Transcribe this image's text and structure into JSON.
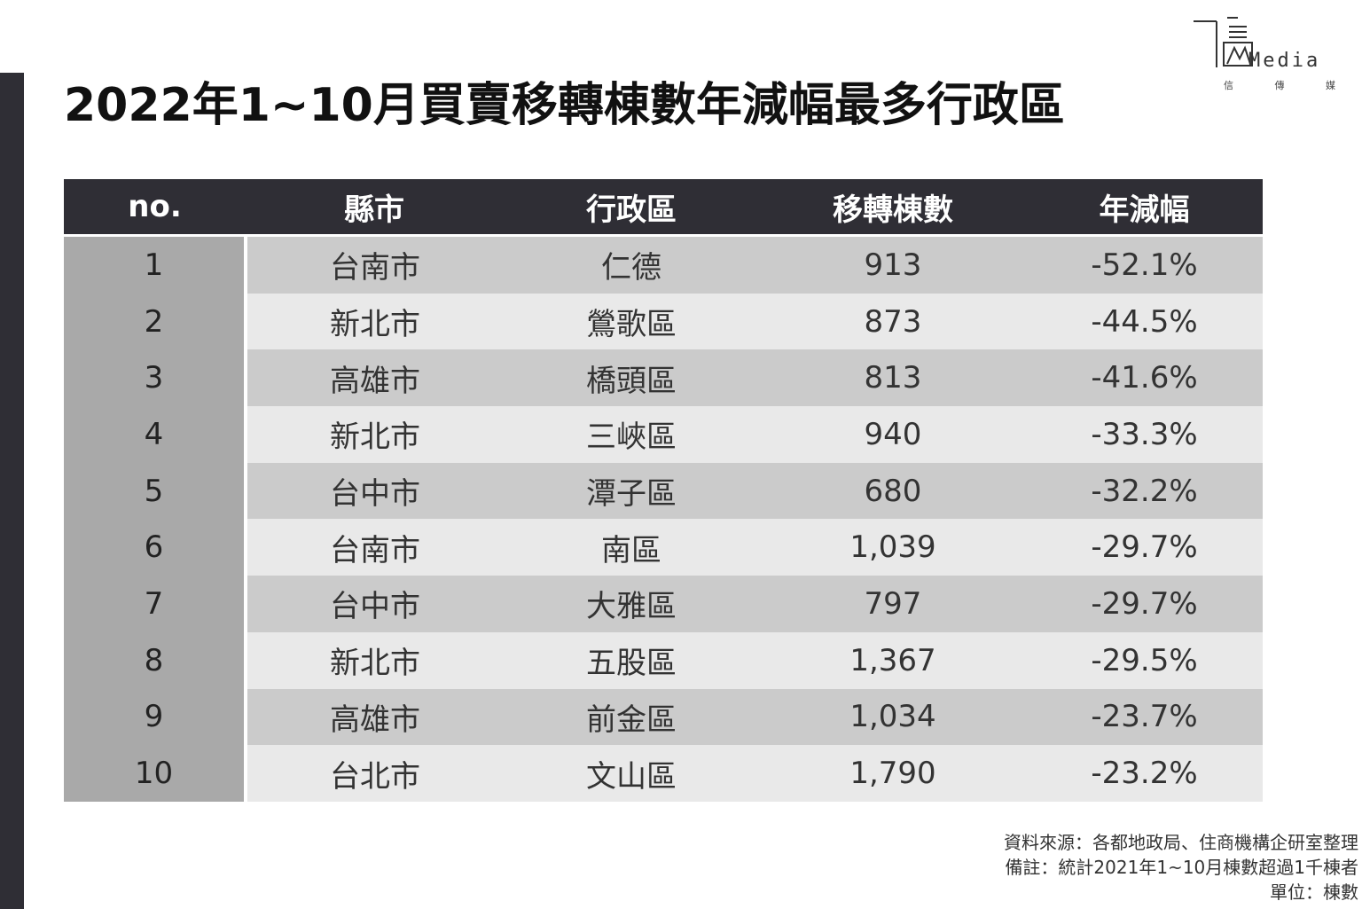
{
  "page": {
    "title": "2022年1~10月買賣移轉棟數年減幅最多行政區"
  },
  "logo": {
    "text": "Media",
    "sub": [
      "信",
      "傳",
      "媒"
    ]
  },
  "chart_data": {
    "type": "table",
    "title": "2022年1~10月買賣移轉棟數年減幅最多行政區",
    "columns": [
      "no.",
      "縣市",
      "行政區",
      "移轉棟數",
      "年減幅"
    ],
    "rows": [
      {
        "no": "1",
        "city": "台南市",
        "district": "仁德",
        "count": "913",
        "change": "-52.1%"
      },
      {
        "no": "2",
        "city": "新北市",
        "district": "鶯歌區",
        "count": "873",
        "change": "-44.5%"
      },
      {
        "no": "3",
        "city": "高雄市",
        "district": "橋頭區",
        "count": "813",
        "change": "-41.6%"
      },
      {
        "no": "4",
        "city": "新北市",
        "district": "三峽區",
        "count": "940",
        "change": "-33.3%"
      },
      {
        "no": "5",
        "city": "台中市",
        "district": "潭子區",
        "count": "680",
        "change": "-32.2%"
      },
      {
        "no": "6",
        "city": "台南市",
        "district": "南區",
        "count": "1,039",
        "change": "-29.7%"
      },
      {
        "no": "7",
        "city": "台中市",
        "district": "大雅區",
        "count": "797",
        "change": "-29.7%"
      },
      {
        "no": "8",
        "city": "新北市",
        "district": "五股區",
        "count": "1,367",
        "change": "-29.5%"
      },
      {
        "no": "9",
        "city": "高雄市",
        "district": "前金區",
        "count": "1,034",
        "change": "-23.7%"
      },
      {
        "no": "10",
        "city": "台北市",
        "district": "文山區",
        "count": "1,790",
        "change": "-23.2%"
      }
    ]
  },
  "footnotes": {
    "source": "資料來源：各都地政局、住商機構企研室整理",
    "note": "備註：統計2021年1~10月棟數超過1千棟者",
    "unit": "單位：棟數"
  }
}
